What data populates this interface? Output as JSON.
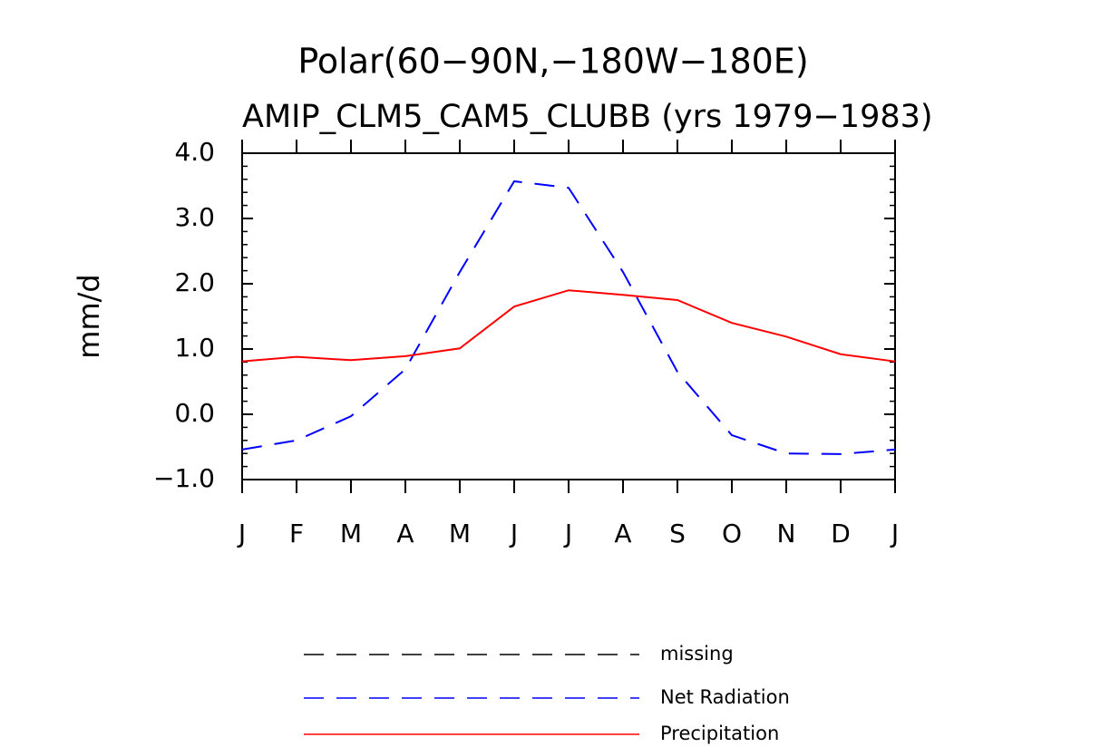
{
  "chart_data": {
    "type": "line",
    "title": "Polar(60−90N,−180W−180E)",
    "subtitle": "AMIP_CLM5_CAM5_CLUBB (yrs 1979−1983)",
    "y_label": "mm/d",
    "categories": [
      "J",
      "F",
      "M",
      "A",
      "M",
      "J",
      "J",
      "A",
      "S",
      "O",
      "N",
      "D",
      "J"
    ],
    "series": [
      {
        "name": "missing",
        "color": "#000000",
        "dashed": true,
        "values": [
          null,
          null,
          null,
          null,
          null,
          null,
          null,
          null,
          null,
          null,
          null,
          null,
          null
        ]
      },
      {
        "name": "Net Radiation",
        "color": "#0000ff",
        "dashed": true,
        "values": [
          -0.54,
          -0.4,
          -0.03,
          0.69,
          2.18,
          3.57,
          3.47,
          2.18,
          0.65,
          -0.32,
          -0.6,
          -0.61,
          -0.54
        ]
      },
      {
        "name": "Precipitation",
        "color": "#ff0000",
        "dashed": false,
        "values": [
          0.81,
          0.88,
          0.83,
          0.89,
          1.01,
          1.65,
          1.9,
          1.83,
          1.75,
          1.4,
          1.19,
          0.92,
          0.81
        ]
      }
    ],
    "ylim": [
      -1.0,
      4.0
    ],
    "yticks": [
      {
        "value": -1.0,
        "label": "−1.0"
      },
      {
        "value": 0.0,
        "label": "0.0"
      },
      {
        "value": 1.0,
        "label": "1.0"
      },
      {
        "value": 2.0,
        "label": "2.0"
      },
      {
        "value": 3.0,
        "label": "3.0"
      },
      {
        "value": 4.0,
        "label": "4.0"
      }
    ],
    "grid": false,
    "legend": "bottom"
  }
}
